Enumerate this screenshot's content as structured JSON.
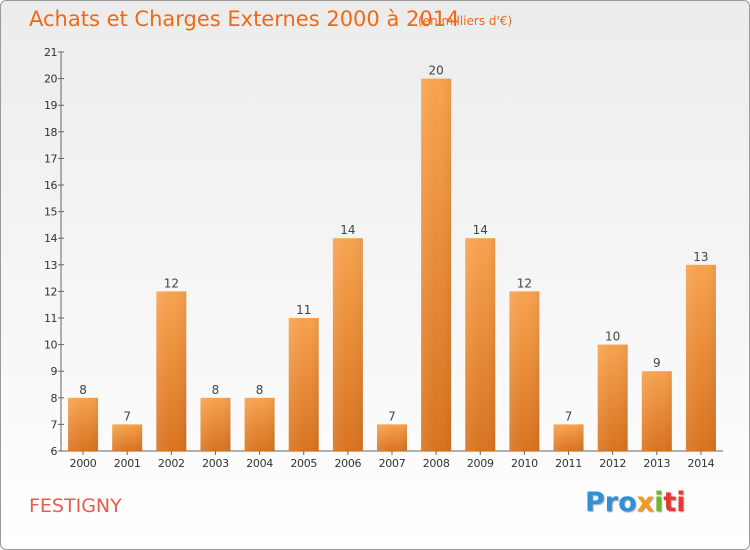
{
  "header": {
    "title": "Achats et Charges Externes 2000 à 2014",
    "subtitle": "(en milliers d'€)"
  },
  "footer": {
    "town": "FESTIGNY",
    "logo": {
      "parts": [
        "Pro",
        "x",
        "i",
        "ti"
      ],
      "colors": [
        "#2f8fd8",
        "#f29a1f",
        "#6fb52c",
        "#e33a2f"
      ]
    }
  },
  "colors": {
    "bar_top": "#f7a24e",
    "bar_bottom": "#d8731f",
    "title": "#ee6a15",
    "town": "#e85a4f"
  },
  "chart_data": {
    "type": "bar",
    "title": "Achats et Charges Externes 2000 à 2014",
    "subtitle": "(en milliers d'€)",
    "xlabel": "",
    "ylabel": "",
    "categories": [
      "2000",
      "2001",
      "2002",
      "2003",
      "2004",
      "2005",
      "2006",
      "2007",
      "2008",
      "2009",
      "2010",
      "2011",
      "2012",
      "2013",
      "2014"
    ],
    "values": [
      8,
      7,
      12,
      8,
      8,
      11,
      14,
      7,
      20,
      14,
      12,
      7,
      10,
      9,
      13
    ],
    "ylim": [
      6,
      21
    ],
    "yticks": [
      6,
      7,
      8,
      9,
      10,
      11,
      12,
      13,
      14,
      15,
      16,
      17,
      18,
      19,
      20,
      21
    ],
    "grid": false,
    "data_labels": true
  }
}
